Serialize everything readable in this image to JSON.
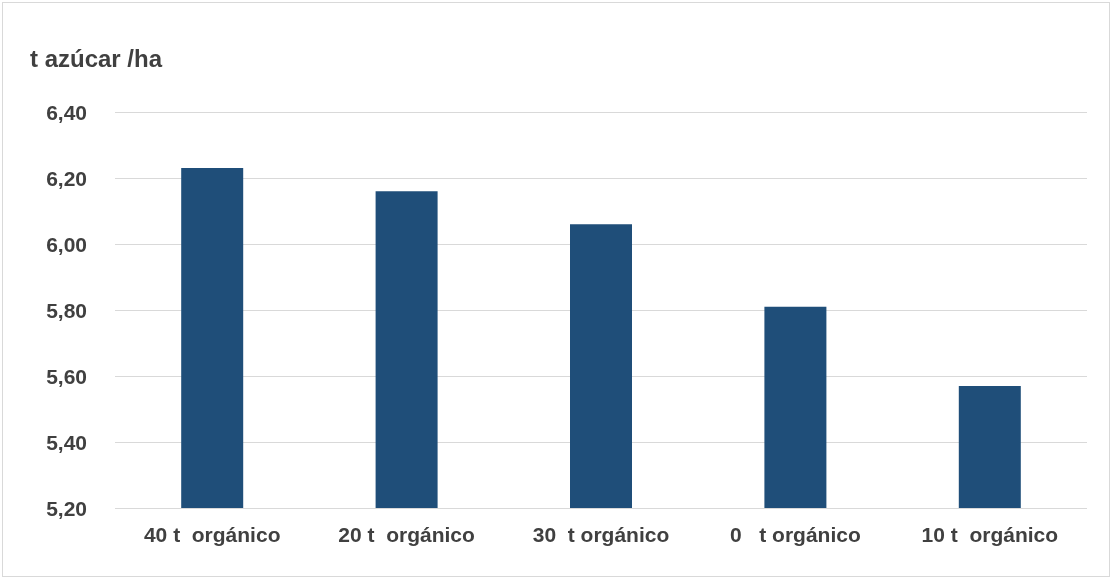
{
  "chart_data": {
    "type": "bar",
    "title": "t azúcar /ha",
    "categories": [
      "40 t  orgánico",
      "20 t  orgánico",
      "30  t orgánico",
      "0   t orgánico",
      "10 t  orgánico"
    ],
    "values": [
      6.23,
      6.16,
      6.06,
      5.81,
      5.57
    ],
    "color": "#1f4e79",
    "ylim": [
      5.2,
      6.4
    ],
    "yticks": [
      {
        "value": 5.2,
        "label": "5,20"
      },
      {
        "value": 5.4,
        "label": "5,40"
      },
      {
        "value": 5.6,
        "label": "5,60"
      },
      {
        "value": 5.8,
        "label": "5,80"
      },
      {
        "value": 6.0,
        "label": "6,00"
      },
      {
        "value": 6.2,
        "label": "6,20"
      },
      {
        "value": 6.4,
        "label": "6,40"
      }
    ],
    "grid": "y"
  }
}
